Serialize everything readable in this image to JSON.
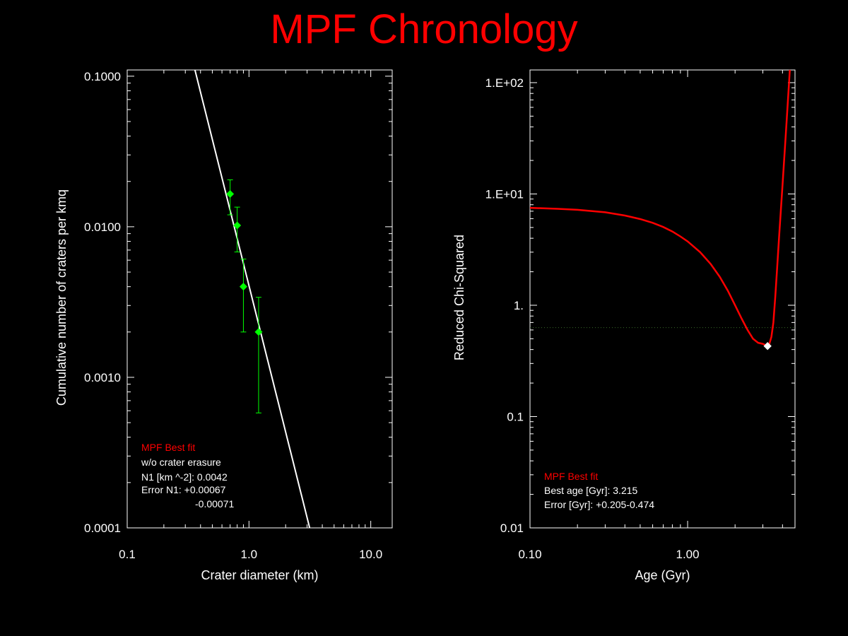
{
  "title": "MPF Chronology",
  "colors": {
    "title": "#ff0000",
    "fit_line": "#ffffff",
    "data_points": "#00ff00",
    "chi_curve": "#ff0000",
    "threshold_line": "#3a6a2a",
    "best_point": "#ffffff",
    "annotation_header": "#ff0000"
  },
  "chart_data": [
    {
      "type": "scatter",
      "xlabel": "Crater diameter (km)",
      "ylabel": "Cumulative number of craters per kmq",
      "x_scale": "log",
      "y_scale": "log",
      "xlim": [
        0.1,
        15
      ],
      "ylim": [
        0.0001,
        0.11
      ],
      "x_tick_labels": [
        "0.1",
        "1.0",
        "10.0"
      ],
      "y_tick_labels": [
        "0.0001",
        "0.0010",
        "0.0100",
        "0.1000"
      ],
      "series": [
        {
          "kind": "points_with_error_bars",
          "points": [
            {
              "x": 0.7,
              "y": 0.0165,
              "y_low": 0.012,
              "y_high": 0.0205
            },
            {
              "x": 0.8,
              "y": 0.0102,
              "y_low": 0.0068,
              "y_high": 0.0135
            },
            {
              "x": 0.9,
              "y": 0.004,
              "y_low": 0.002,
              "y_high": 0.0061
            },
            {
              "x": 1.2,
              "y": 0.002,
              "y_low": 0.00058,
              "y_high": 0.0034
            }
          ]
        },
        {
          "kind": "fit_line",
          "points": [
            {
              "x": 0.36,
              "y": 0.11
            },
            {
              "x": 3.15,
              "y": 0.0001
            }
          ]
        }
      ],
      "annotations": {
        "header": "MPF Best fit",
        "lines": [
          "w/o crater erasure",
          "N1 [km ^-2]: 0.0042",
          "Error N1: +0.00067",
          "-0.00071"
        ]
      }
    },
    {
      "type": "line",
      "xlabel": "Age (Gyr)",
      "ylabel": "Reduced Chi-Squared",
      "x_scale": "log",
      "y_scale": "log",
      "xlim": [
        0.1,
        4.8
      ],
      "ylim": [
        0.01,
        130
      ],
      "x_tick_labels": [
        "0.10",
        "1.00"
      ],
      "y_tick_labels": [
        "0.01",
        "0.1",
        "1.",
        "1.E+01",
        "1.E+02"
      ],
      "threshold_y": 0.63,
      "series": [
        {
          "kind": "chi_curve",
          "x": [
            0.1,
            0.15,
            0.2,
            0.3,
            0.4,
            0.5,
            0.6,
            0.7,
            0.8,
            0.9,
            1.0,
            1.2,
            1.4,
            1.6,
            1.8,
            2.0,
            2.2,
            2.4,
            2.6,
            2.8,
            3.0,
            3.1,
            3.215,
            3.3,
            3.4,
            3.5,
            3.6,
            3.7,
            3.8,
            3.9,
            4.0,
            4.2,
            4.4,
            4.45
          ],
          "values": [
            7.5,
            7.35,
            7.2,
            6.85,
            6.4,
            5.95,
            5.5,
            5.05,
            4.6,
            4.15,
            3.75,
            3.0,
            2.35,
            1.8,
            1.35,
            1.0,
            0.76,
            0.6,
            0.5,
            0.46,
            0.45,
            0.44,
            0.43,
            0.45,
            0.52,
            0.7,
            1.2,
            2.2,
            4.0,
            7.0,
            12.0,
            35.0,
            100.0,
            130.0
          ]
        },
        {
          "kind": "best_point",
          "x": 3.215,
          "y": 0.43
        }
      ],
      "annotations": {
        "header": "MPF Best fit",
        "lines": [
          "Best age [Gyr]: 3.215",
          "Error [Gyr]: +0.205-0.474"
        ]
      }
    }
  ]
}
